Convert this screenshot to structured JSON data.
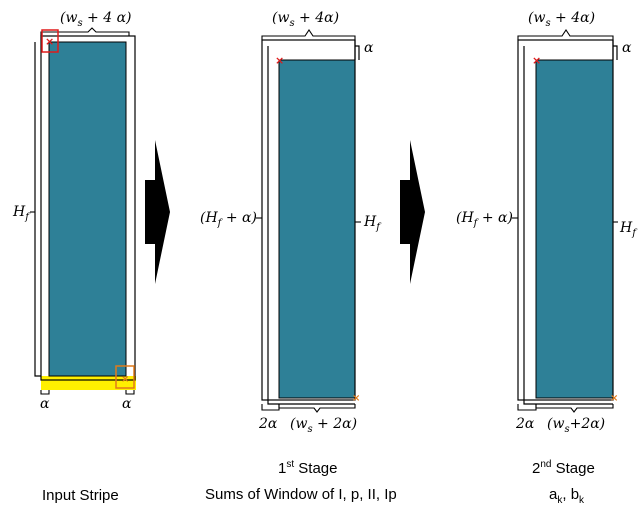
{
  "colors": {
    "stripe_fill": "#2e8097",
    "highlight_yellow": "#ffef00",
    "red_marker": "#e01a1a",
    "orange_marker": "#e07a1a",
    "arrow": "#000000"
  },
  "panels": {
    "input": {
      "label_Hf": "H",
      "label_Hf_sub": "f",
      "top_label": "(w",
      "top_label_sub": "s",
      "top_label_rest": " + 4 α)",
      "bottom_left_alpha": "α",
      "bottom_right_alpha": "α",
      "caption": "Input Stripe"
    },
    "stage1": {
      "top_label": "(w",
      "top_label_sub": "s",
      "top_label_rest": " + 4α)",
      "alpha_right": "α",
      "left_label": "(H",
      "left_label_sub": "f",
      "left_label_rest": " + α)",
      "right_label": "H",
      "right_label_sub": "f",
      "bottom_left": "2α",
      "bottom_label": "(w",
      "bottom_label_sub": "s",
      "bottom_label_rest": " + 2α)",
      "caption_ordinal": "1",
      "caption_sup": "st",
      "caption_stage": " Stage",
      "caption_line2": "Sums of Window of I, p, II, Ip"
    },
    "stage2": {
      "top_label": "(w",
      "top_label_sub": "s",
      "top_label_rest": " + 4α)",
      "alpha_right": "α",
      "left_label": "(H",
      "left_label_sub": "f",
      "left_label_rest": " + α)",
      "right_label": "H",
      "right_label_sub": "f",
      "bottom_left": "2α",
      "bottom_label": "(w",
      "bottom_label_sub": "s",
      "bottom_label_rest": "+2α)",
      "caption_ordinal": "2",
      "caption_sup": "nd",
      "caption_stage": " Stage",
      "caption_a": "a",
      "caption_a_sub": "k",
      "caption_sep": ", ",
      "caption_b": "b",
      "caption_b_sub": "k"
    }
  }
}
